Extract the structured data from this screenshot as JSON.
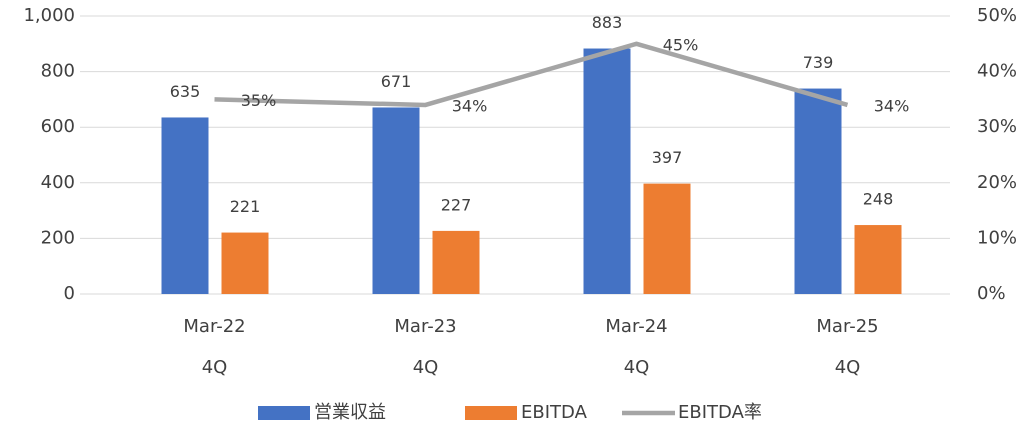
{
  "chart_data": {
    "type": "bar-line",
    "categories": [
      [
        "Mar-22",
        "4Q"
      ],
      [
        "Mar-23",
        "4Q"
      ],
      [
        "Mar-24",
        "4Q"
      ],
      [
        "Mar-25",
        "4Q"
      ]
    ],
    "series": [
      {
        "name": "営業収益",
        "type": "bar",
        "color": "#4472c4",
        "values": [
          635,
          671,
          883,
          739
        ]
      },
      {
        "name": "EBITDA",
        "type": "bar",
        "color": "#ed7d31",
        "values": [
          221,
          227,
          397,
          248
        ]
      },
      {
        "name": "EBITDA率",
        "type": "line",
        "axis": "y2",
        "color": "#a5a5a5",
        "values": [
          35,
          34,
          45,
          34
        ],
        "value_labels": [
          "35%",
          "34%",
          "45%",
          "34%"
        ]
      }
    ],
    "ylim": [
      0,
      1000
    ],
    "yticks": [
      0,
      200,
      400,
      600,
      800,
      {
        "value": 1000,
        "label": "1,000"
      }
    ],
    "y2lim": [
      0,
      50
    ],
    "y2ticks": [
      {
        "value": 0,
        "label": "0%"
      },
      {
        "value": 10,
        "label": "10%"
      },
      {
        "value": 20,
        "label": "20%"
      },
      {
        "value": 30,
        "label": "30%"
      },
      {
        "value": 40,
        "label": "40%"
      },
      {
        "value": 50,
        "label": "50%"
      }
    ],
    "grid": true,
    "legend": "bottom"
  }
}
